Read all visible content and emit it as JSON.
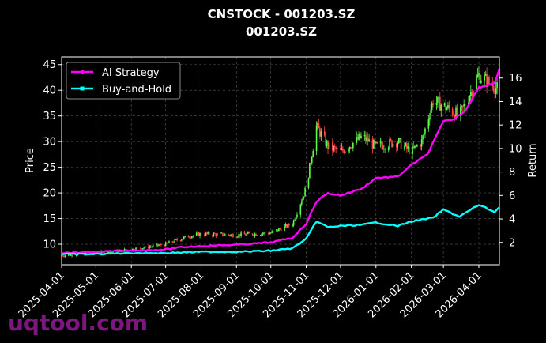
{
  "chart_data": {
    "type": "line",
    "title": "CNSTOCK - 001203.SZ",
    "subtitle": "001203.SZ",
    "ylabel": "Price",
    "y2label": "Return",
    "ylim": [
      6,
      46.5
    ],
    "y2lim": [
      0.1,
      17.8
    ],
    "yticks": [
      10,
      15,
      20,
      25,
      30,
      35,
      40,
      45
    ],
    "y2ticks": [
      2,
      4,
      6,
      8,
      10,
      12,
      14,
      16
    ],
    "xlim": [
      "2025-04-01",
      "2026-04-19"
    ],
    "xticks": [
      "2025-04-01",
      "2025-05-01",
      "2025-06-01",
      "2025-07-01",
      "2025-08-01",
      "2025-09-01",
      "2025-10-01",
      "2025-11-01",
      "2025-12-01",
      "2026-01-01",
      "2026-02-01",
      "2026-03-01",
      "2026-04-01"
    ],
    "grid": true,
    "legend_position": "top-left",
    "price_anchors": [
      [
        "2025-04-01",
        7.8
      ],
      [
        "2025-05-01",
        8.2
      ],
      [
        "2025-06-01",
        9.0
      ],
      [
        "2025-07-01",
        10.0
      ],
      [
        "2025-07-20",
        11.5
      ],
      [
        "2025-08-01",
        12.0
      ],
      [
        "2025-09-01",
        11.8
      ],
      [
        "2025-10-01",
        12.2
      ],
      [
        "2025-10-20",
        14.0
      ],
      [
        "2025-11-01",
        21.0
      ],
      [
        "2025-11-10",
        33.0
      ],
      [
        "2025-11-20",
        29.0
      ],
      [
        "2025-12-01",
        28.0
      ],
      [
        "2025-12-20",
        31.0
      ],
      [
        "2026-01-01",
        29.0
      ],
      [
        "2026-01-20",
        30.0
      ],
      [
        "2026-02-01",
        28.0
      ],
      [
        "2026-02-10",
        30.0
      ],
      [
        "2026-02-20",
        38.0
      ],
      [
        "2026-03-01",
        37.0
      ],
      [
        "2026-03-15",
        35.0
      ],
      [
        "2026-04-01",
        43.0
      ],
      [
        "2026-04-19",
        40.0
      ]
    ],
    "series": [
      {
        "name": "AI Strategy",
        "color": "#ff00ff",
        "points": [
          [
            "2025-04-01",
            1.1
          ],
          [
            "2025-05-01",
            1.2
          ],
          [
            "2025-06-01",
            1.3
          ],
          [
            "2025-07-01",
            1.4
          ],
          [
            "2025-07-15",
            1.6
          ],
          [
            "2025-08-01",
            1.7
          ],
          [
            "2025-09-01",
            1.8
          ],
          [
            "2025-10-01",
            2.0
          ],
          [
            "2025-10-20",
            2.4
          ],
          [
            "2025-11-01",
            3.6
          ],
          [
            "2025-11-10",
            5.5
          ],
          [
            "2025-11-20",
            6.2
          ],
          [
            "2025-12-01",
            6.0
          ],
          [
            "2025-12-20",
            6.6
          ],
          [
            "2026-01-01",
            7.5
          ],
          [
            "2026-01-20",
            7.6
          ],
          [
            "2026-02-01",
            8.6
          ],
          [
            "2026-02-15",
            9.5
          ],
          [
            "2026-03-01",
            12.3
          ],
          [
            "2026-03-10",
            12.5
          ],
          [
            "2026-03-20",
            13.2
          ],
          [
            "2026-04-01",
            15.2
          ],
          [
            "2026-04-15",
            15.6
          ],
          [
            "2026-04-19",
            16.8
          ]
        ]
      },
      {
        "name": "Buy-and-Hold",
        "color": "#00ffff",
        "points": [
          [
            "2025-04-01",
            1.0
          ],
          [
            "2025-05-01",
            1.0
          ],
          [
            "2025-06-01",
            1.1
          ],
          [
            "2025-07-01",
            1.1
          ],
          [
            "2025-08-01",
            1.2
          ],
          [
            "2025-09-01",
            1.2
          ],
          [
            "2025-10-01",
            1.3
          ],
          [
            "2025-10-20",
            1.5
          ],
          [
            "2025-11-01",
            2.3
          ],
          [
            "2025-11-10",
            3.8
          ],
          [
            "2025-11-20",
            3.3
          ],
          [
            "2025-12-01",
            3.4
          ],
          [
            "2025-12-20",
            3.5
          ],
          [
            "2026-01-01",
            3.7
          ],
          [
            "2026-01-20",
            3.4
          ],
          [
            "2026-02-01",
            3.8
          ],
          [
            "2026-02-20",
            4.1
          ],
          [
            "2026-03-01",
            4.8
          ],
          [
            "2026-03-15",
            4.2
          ],
          [
            "2026-04-01",
            5.2
          ],
          [
            "2026-04-15",
            4.6
          ],
          [
            "2026-04-19",
            5.0
          ]
        ]
      }
    ]
  },
  "watermark": "uqtool.com"
}
